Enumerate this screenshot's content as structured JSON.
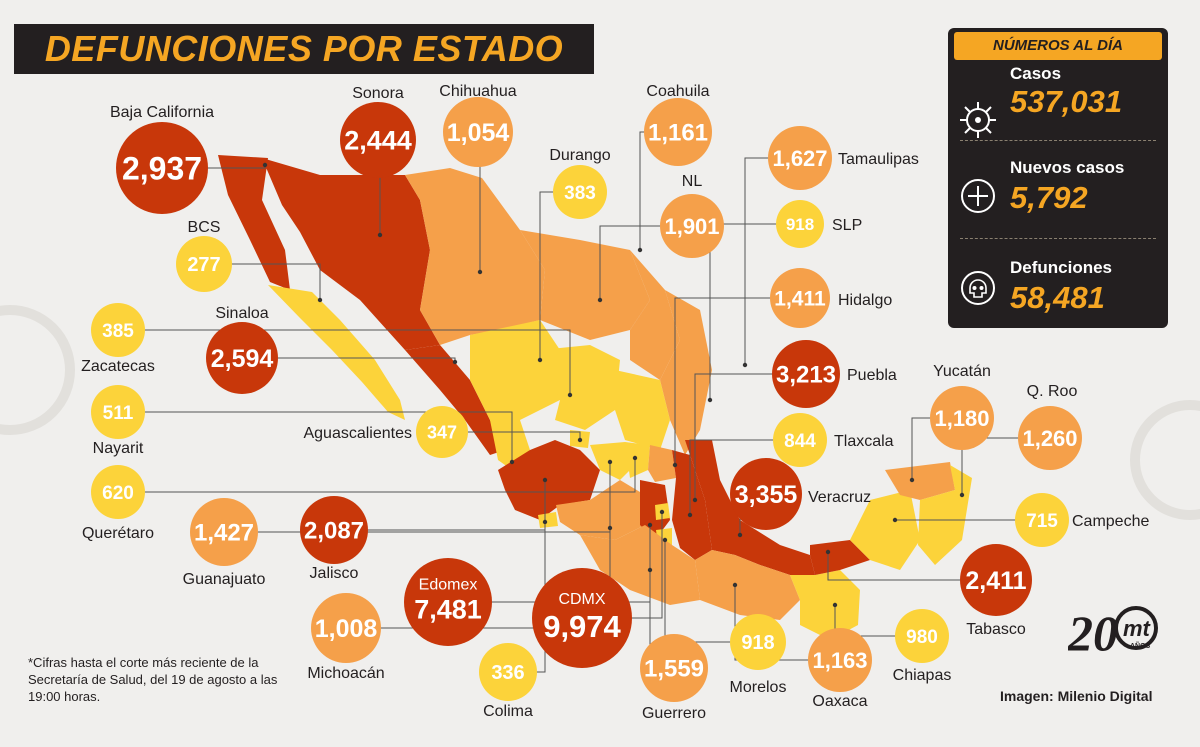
{
  "title": "DEFUNCIONES POR ESTADO",
  "colors": {
    "high": "#c8370a",
    "mid": "#f5a04a",
    "low": "#fcd33a",
    "dark": "#231f20",
    "accent": "#f5a623"
  },
  "panel": {
    "header": "NÚMEROS AL DÍA",
    "items": [
      {
        "label": "Casos",
        "value": "537,031",
        "icon": "virus-icon"
      },
      {
        "label": "Nuevos casos",
        "value": "5,792",
        "icon": "plus-icon"
      },
      {
        "label": "Defunciones",
        "value": "58,481",
        "icon": "skull-icon"
      }
    ]
  },
  "states": [
    {
      "name": "Baja California",
      "value": "2,937",
      "level": "high"
    },
    {
      "name": "Sonora",
      "value": "2,444",
      "level": "high"
    },
    {
      "name": "Chihuahua",
      "value": "1,054",
      "level": "mid"
    },
    {
      "name": "Coahuila",
      "value": "1,161",
      "level": "mid"
    },
    {
      "name": "Durango",
      "value": "383",
      "level": "low"
    },
    {
      "name": "NL",
      "value": "1,901",
      "level": "mid"
    },
    {
      "name": "Tamaulipas",
      "value": "1,627",
      "level": "mid"
    },
    {
      "name": "SLP",
      "value": "918",
      "level": "low"
    },
    {
      "name": "BCS",
      "value": "277",
      "level": "low"
    },
    {
      "name": "Hidalgo",
      "value": "1,411",
      "level": "mid"
    },
    {
      "name": "Zacatecas",
      "value": "385",
      "level": "low"
    },
    {
      "name": "Sinaloa",
      "value": "2,594",
      "level": "high"
    },
    {
      "name": "Puebla",
      "value": "3,213",
      "level": "high"
    },
    {
      "name": "Nayarit",
      "value": "511",
      "level": "low"
    },
    {
      "name": "Aguascalientes",
      "value": "347",
      "level": "low"
    },
    {
      "name": "Tlaxcala",
      "value": "844",
      "level": "low"
    },
    {
      "name": "Yucatán",
      "value": "1,180",
      "level": "mid"
    },
    {
      "name": "Q. Roo",
      "value": "1,260",
      "level": "mid"
    },
    {
      "name": "Querétaro",
      "value": "620",
      "level": "low"
    },
    {
      "name": "Guanajuato",
      "value": "1,427",
      "level": "mid"
    },
    {
      "name": "Jalisco",
      "value": "2,087",
      "level": "high"
    },
    {
      "name": "Veracruz",
      "value": "3,355",
      "level": "high"
    },
    {
      "name": "Campeche",
      "value": "715",
      "level": "low"
    },
    {
      "name": "Edomex",
      "value": "7,481",
      "level": "high"
    },
    {
      "name": "CDMX",
      "value": "9,974",
      "level": "high"
    },
    {
      "name": "Tabasco",
      "value": "2,411",
      "level": "high"
    },
    {
      "name": "Michoacán",
      "value": "1,008",
      "level": "mid"
    },
    {
      "name": "Colima",
      "value": "336",
      "level": "low"
    },
    {
      "name": "Guerrero",
      "value": "1,559",
      "level": "mid"
    },
    {
      "name": "Morelos",
      "value": "918",
      "level": "low"
    },
    {
      "name": "Oaxaca",
      "value": "1,163",
      "level": "mid"
    },
    {
      "name": "Chiapas",
      "value": "980",
      "level": "low"
    }
  ],
  "note": "*Cifras hasta el corte más reciente de la Secretaría de Salud, del 19 de agosto a las 19:00 horas.",
  "credit": "Imagen: Milenio Digital",
  "logo": {
    "number": "20",
    "brand": "mt",
    "sub": "AÑOS"
  }
}
